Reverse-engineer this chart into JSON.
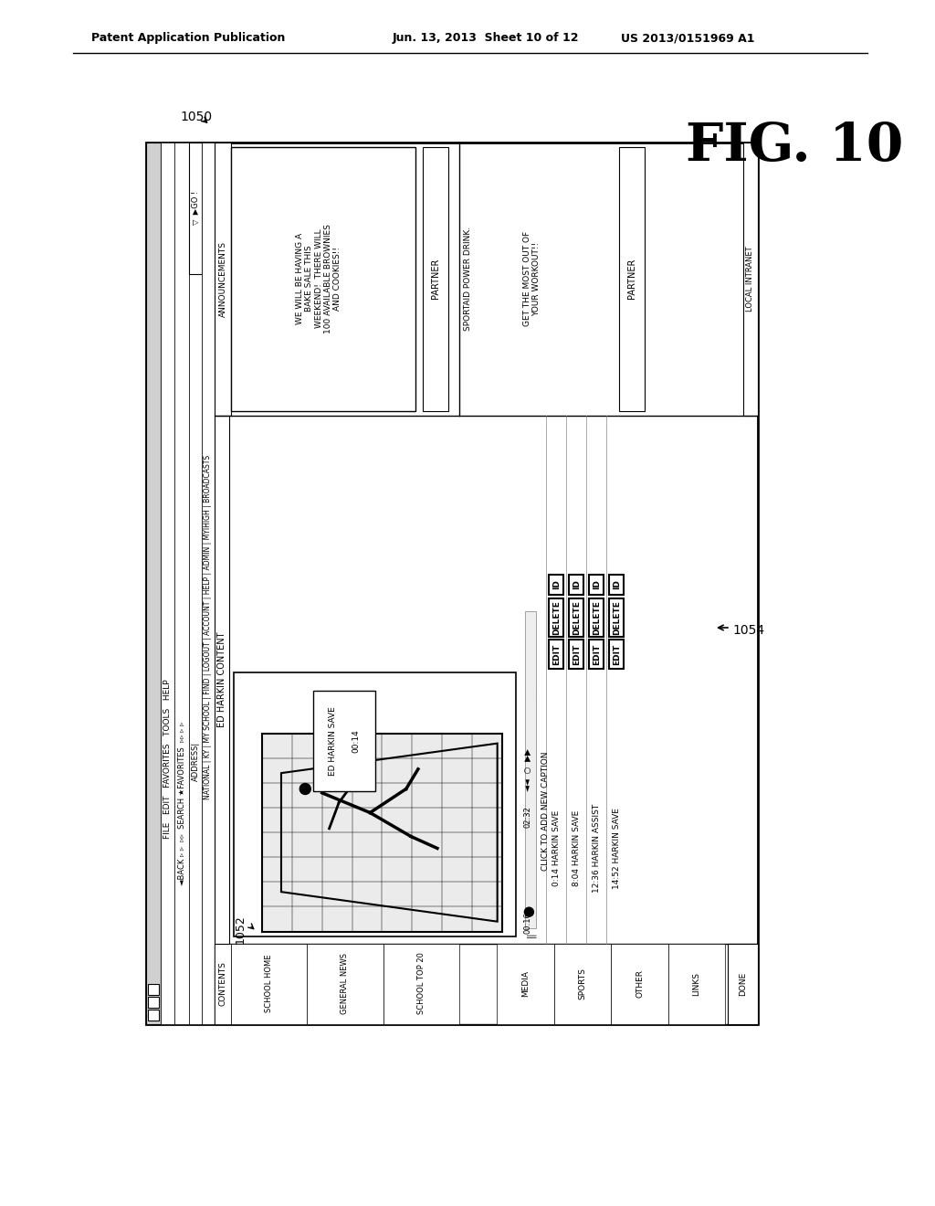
{
  "bg_color": "#ffffff",
  "header_text_left": "Patent Application Publication",
  "header_text_mid": "Jun. 13, 2013  Sheet 10 of 12",
  "header_text_right": "US 2013/0151969 A1",
  "fig_label": "FIG. 10",
  "ref_1050": "1050",
  "ref_1052": "1052",
  "ref_1054": "1054",
  "left_panel_items": [
    "CONTENTS",
    "SCHOOL HOME",
    "GENERAL NEWS",
    "SCHOOL TOP 20"
  ],
  "left_panel_bottom": [
    "MEDIA",
    "SPORTS",
    "OTHER",
    "LINKS"
  ],
  "left_panel_done": "DONE",
  "main_title": "ED HARKIN CONTENT",
  "right_panel_title": "ANNOUNCEMENTS",
  "right_panel_text1": "WE WILL BE HAVING A\nBAKE SALE THIS\nWEEKEND!  THERE WILL\n100 AVAILABLE BROWNIES\nAND COOKIES!!",
  "right_partner1": "PARTNER",
  "right_sportaid": "SPORTAID POWER DRINK.",
  "right_sportaid2": "GET THE MOST OUT OF\nYOUR WORKOUT!!",
  "right_partner2": "PARTNER",
  "right_local": "LOCAL INTRANET",
  "video_label1": "ED HARKIN SAVE",
  "video_label2": "00:14",
  "timeline_left": "00:16",
  "timeline_right": "02:32",
  "click_caption": "CLICK TO ADD NEW CAPTION",
  "captions": [
    "0:14 HARKIN SAVE",
    "8:04 HARKIN SAVE",
    "12:36 HARKIN ASSIST",
    "14:52 HARKIN SAVE"
  ],
  "menu_row": "FILE   EDIT   FAVORITES   TOOLS   HELP",
  "toolbar_row": "◄BACK ▹ ▹  ▹▹  SEARCH ★FAVORITES  ▹▹ ▹ ▹",
  "nav_row": "NATIONAL | KY | MY SCHOOL | FIND | LOGOUT | ACCOUNT | HELP | ADMIN | MYIHIGH | BROADCASTS",
  "address_row": "ADDRESS|",
  "go_btn": "▽  ▶GO !"
}
